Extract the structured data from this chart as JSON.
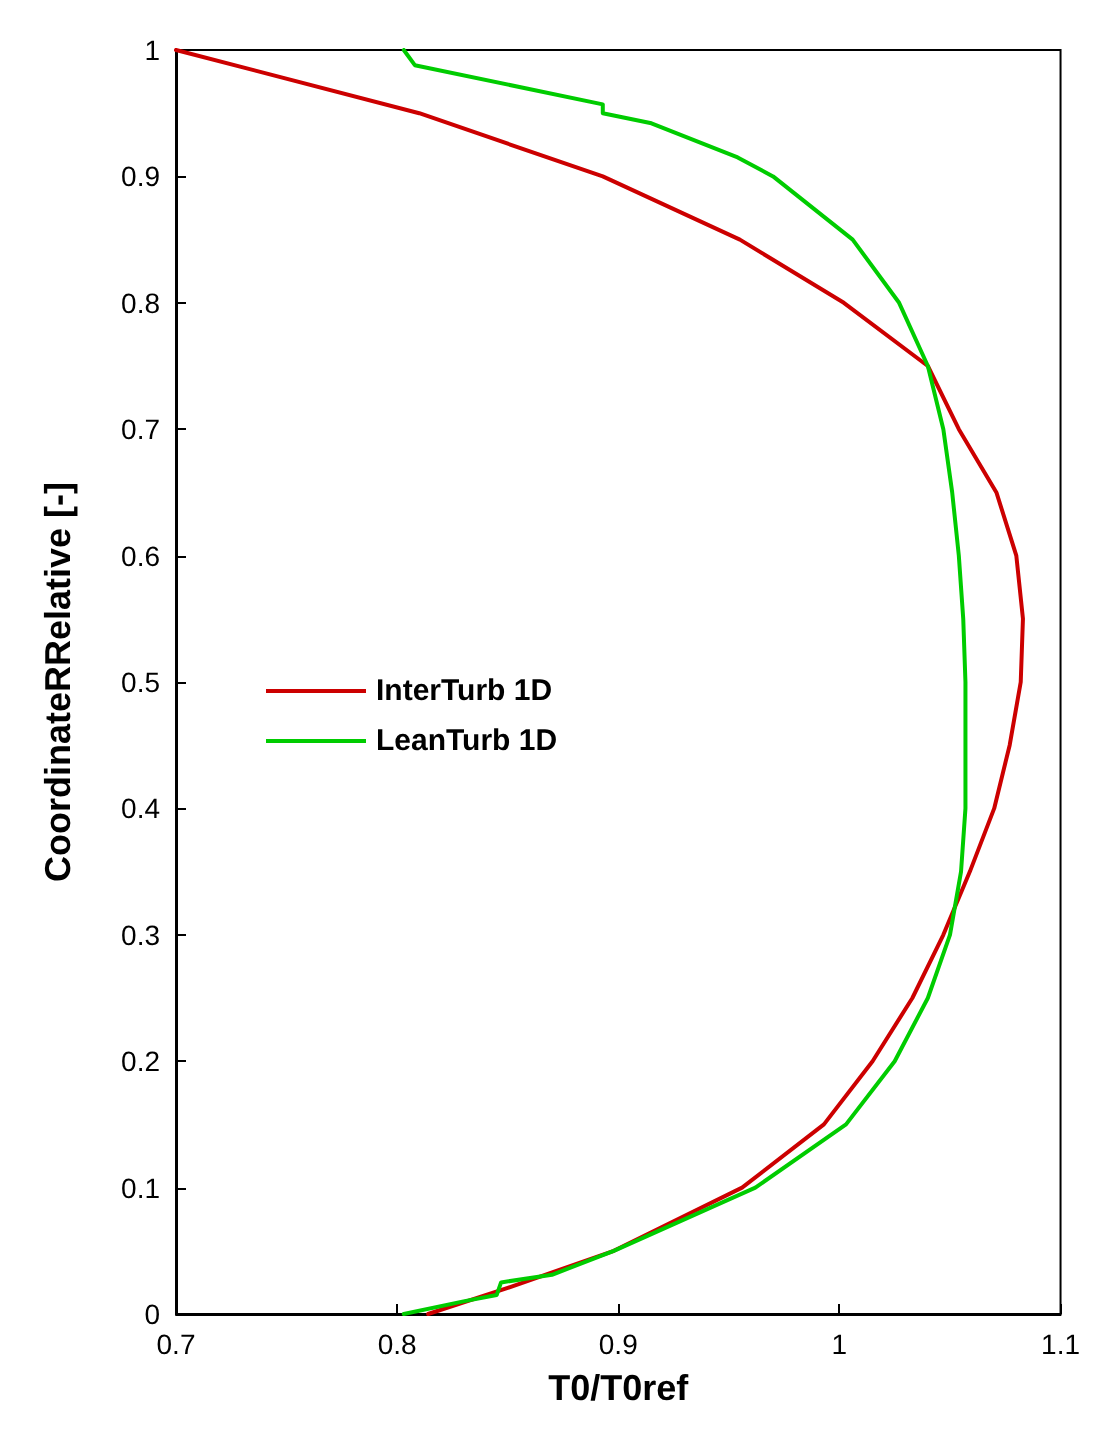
{
  "chart_data": {
    "type": "line",
    "xlabel": "T0/T0ref",
    "ylabel": "CoordinateRRelative [-]",
    "xlim": [
      0.7,
      1.1
    ],
    "xticks": [
      0.7,
      0.8,
      0.9,
      1,
      1.1
    ],
    "ylim": [
      0,
      1
    ],
    "yticks": [
      0,
      0.1,
      0.2,
      0.3,
      0.4,
      0.5,
      0.6,
      0.7,
      0.8,
      0.9,
      1
    ],
    "grid": false,
    "legend": "left",
    "marker": "none",
    "line_style": "solid",
    "series": [
      {
        "name": "InterTurb 1D",
        "color": "#cc0000",
        "x": [
          0.7,
          0.81,
          0.893,
          0.955,
          1.002,
          1.04,
          1.054,
          1.071,
          1.08,
          1.083,
          1.082,
          1.077,
          1.07,
          1.059,
          1.047,
          1.033,
          1.015,
          0.993,
          0.956,
          0.898,
          0.849,
          0.814
        ],
        "values": [
          1,
          0.95,
          0.9,
          0.85,
          0.8,
          0.75,
          0.7,
          0.65,
          0.6,
          0.55,
          0.5,
          0.45,
          0.4,
          0.35,
          0.3,
          0.25,
          0.2,
          0.15,
          0.1,
          0.05,
          0.02,
          0
        ]
      },
      {
        "name": "LeanTurb 1D",
        "color": "#00cc00",
        "x": [
          0.803,
          0.808,
          0.893,
          0.893,
          0.915,
          0.954,
          0.97,
          1.006,
          1.027,
          1.04,
          1.047,
          1.051,
          1.054,
          1.056,
          1.057,
          1.057,
          1.057,
          1.055,
          1.05,
          1.04,
          1.025,
          1.003,
          0.962,
          0.898,
          0.87,
          0.847,
          0.845,
          0.83,
          0.803
        ],
        "values": [
          1,
          0.988,
          0.957,
          0.95,
          0.942,
          0.915,
          0.9,
          0.85,
          0.8,
          0.75,
          0.7,
          0.65,
          0.6,
          0.55,
          0.5,
          0.45,
          0.4,
          0.35,
          0.3,
          0.25,
          0.2,
          0.15,
          0.1,
          0.05,
          0.031,
          0.025,
          0.015,
          0.01,
          0
        ]
      }
    ]
  }
}
